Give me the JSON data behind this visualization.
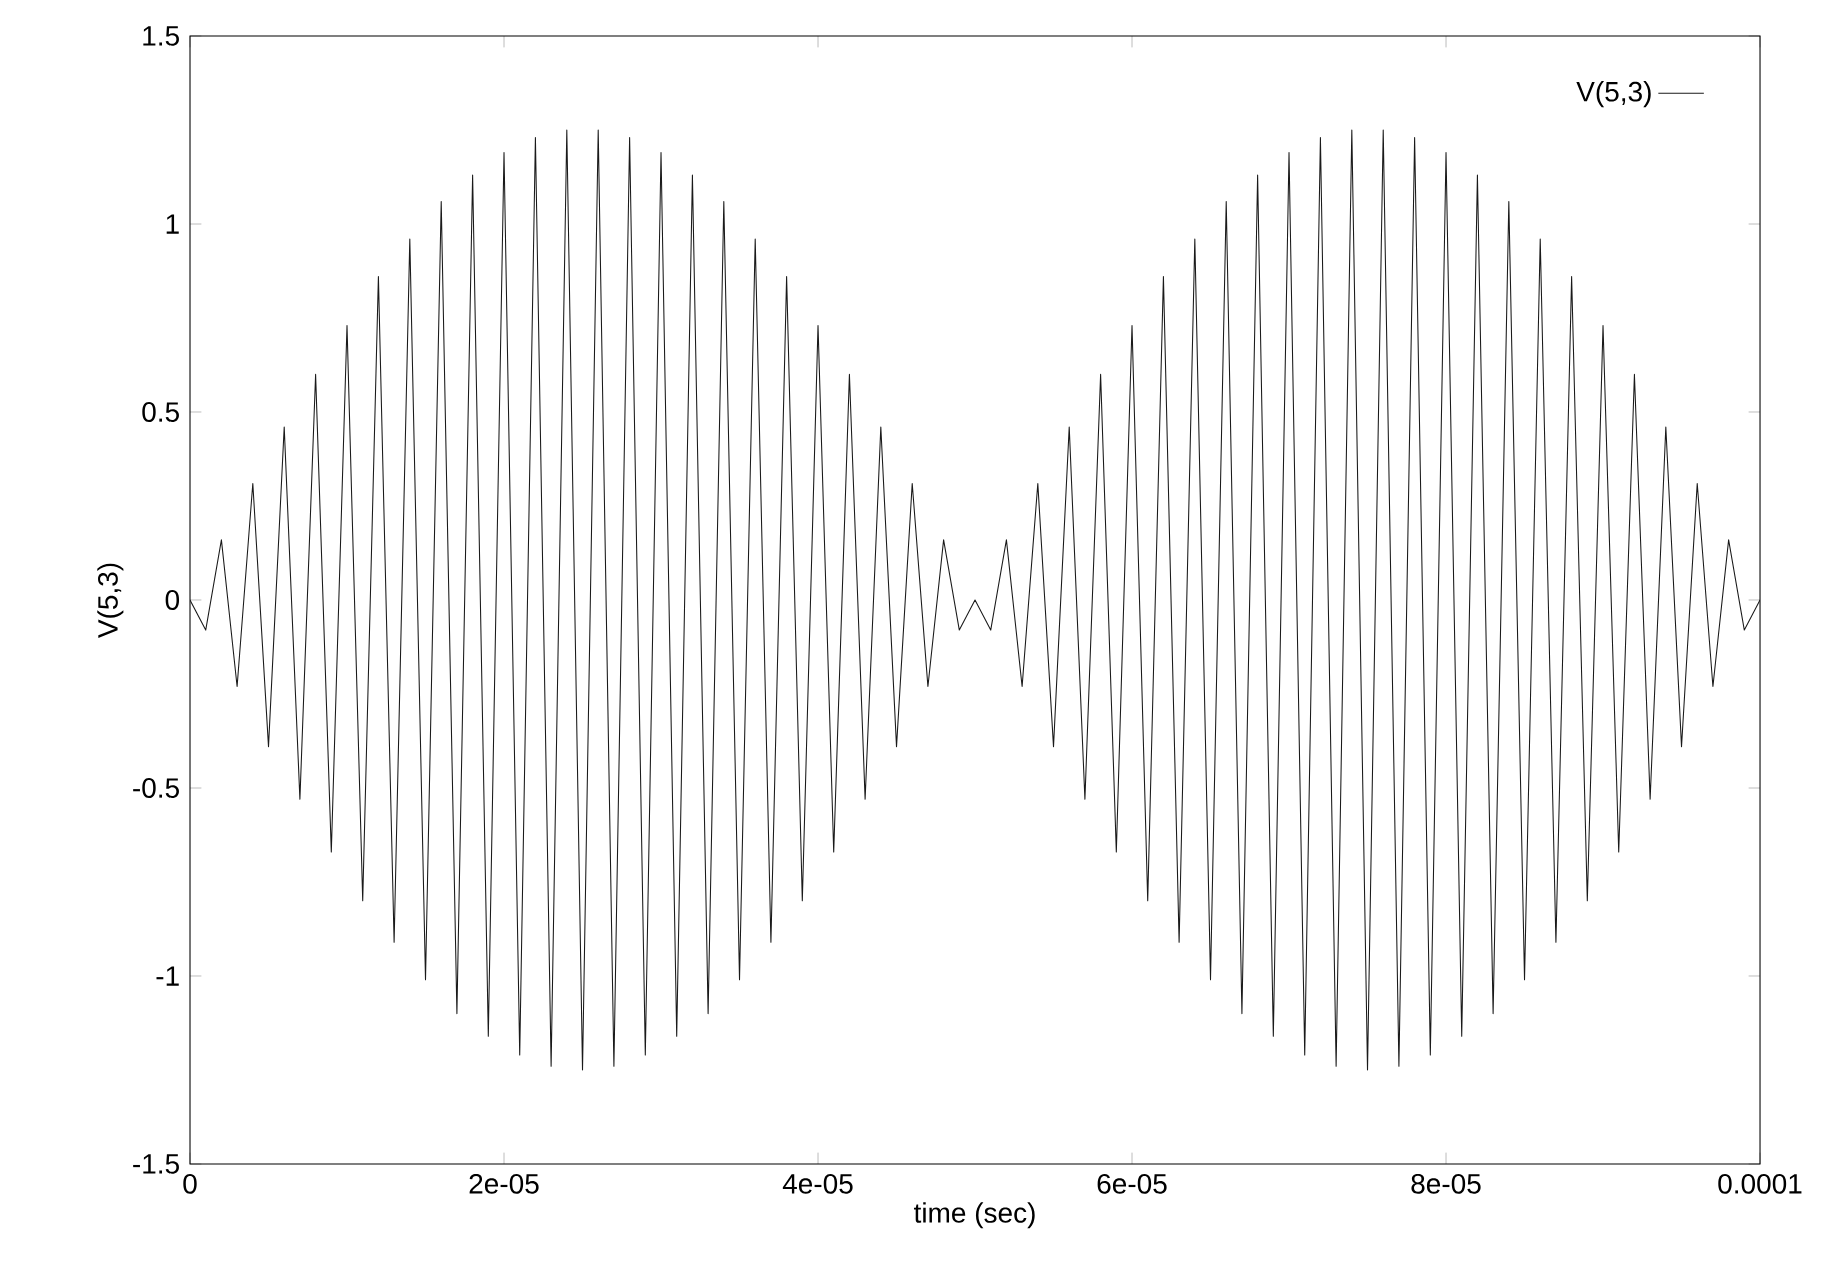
{
  "chart_data": {
    "type": "line",
    "xlabel": "time (sec)",
    "ylabel": "V(5,3)",
    "xlim": [
      0,
      0.0001
    ],
    "xticks": [
      0,
      {
        "value": 2e-05,
        "label": "2e-05"
      },
      {
        "value": 4e-05,
        "label": "4e-05"
      },
      {
        "value": 6e-05,
        "label": "6e-05"
      },
      {
        "value": 8e-05,
        "label": "8e-05"
      },
      {
        "value": 0.0001,
        "label": "0.0001"
      }
    ],
    "ylim": [
      -1.5,
      1.5
    ],
    "yticks": [
      -1.5,
      -1,
      -0.5,
      0,
      0.5,
      1,
      1.5
    ],
    "legend": "top right",
    "grid": false,
    "marker": "none",
    "line_style": "solid",
    "x": [
      0,
      1e-06,
      2e-06,
      3e-06,
      4e-06,
      5e-06,
      6e-06,
      7e-06,
      8e-06,
      9e-06,
      1e-05,
      1.1e-05,
      1.2e-05,
      1.3e-05,
      1.4e-05,
      1.5e-05,
      1.6e-05,
      1.7e-05,
      1.8e-05,
      1.9e-05,
      2e-05,
      2.1e-05,
      2.2e-05,
      2.3e-05,
      2.4e-05,
      2.5e-05,
      2.6e-05,
      2.7e-05,
      2.8e-05,
      2.9e-05,
      3e-05,
      3.1e-05,
      3.2e-05,
      3.3e-05,
      3.4e-05,
      3.5e-05,
      3.6e-05,
      3.7e-05,
      3.8e-05,
      3.9e-05,
      4e-05,
      4.1e-05,
      4.2e-05,
      4.3e-05,
      4.4e-05,
      4.5e-05,
      4.6e-05,
      4.7e-05,
      4.8e-05,
      4.9e-05,
      5e-05,
      5.1e-05,
      5.2e-05,
      5.3e-05,
      5.4e-05,
      5.5e-05,
      5.6e-05,
      5.7e-05,
      5.8e-05,
      5.9e-05,
      6e-05,
      6.1e-05,
      6.2e-05,
      6.3e-05,
      6.4e-05,
      6.5e-05,
      6.6e-05,
      6.7e-05,
      6.8e-05,
      6.9e-05,
      7e-05,
      7.1e-05,
      7.2e-05,
      7.3e-05,
      7.4e-05,
      7.5e-05,
      7.6e-05,
      7.7e-05,
      7.8e-05,
      7.9e-05,
      8e-05,
      8.1e-05,
      8.2e-05,
      8.3e-05,
      8.4e-05,
      8.5e-05,
      8.6e-05,
      8.7e-05,
      8.8e-05,
      8.9e-05,
      9e-05,
      9.1e-05,
      9.2e-05,
      9.3e-05,
      9.4e-05,
      9.5e-05,
      9.6e-05,
      9.7e-05,
      9.8e-05,
      9.9e-05,
      0.0001
    ],
    "series": [
      {
        "name": "V(5,3)",
        "color": "#1a1a1a",
        "values": [
          0,
          -0.08,
          0.16,
          -0.23,
          0.31,
          -0.39,
          0.46,
          -0.53,
          0.6,
          -0.67,
          0.73,
          -0.8,
          0.86,
          -0.91,
          0.96,
          -1.01,
          1.06,
          -1.1,
          1.13,
          -1.16,
          1.19,
          -1.21,
          1.23,
          -1.24,
          1.25,
          -1.25,
          1.25,
          -1.24,
          1.23,
          -1.21,
          1.19,
          -1.16,
          1.13,
          -1.1,
          1.06,
          -1.01,
          0.96,
          -0.91,
          0.86,
          -0.8,
          0.73,
          -0.67,
          0.6,
          -0.53,
          0.46,
          -0.39,
          0.31,
          -0.23,
          0.16,
          -0.08,
          0,
          -0.08,
          0.16,
          -0.23,
          0.31,
          -0.39,
          0.46,
          -0.53,
          0.6,
          -0.67,
          0.73,
          -0.8,
          0.86,
          -0.91,
          0.96,
          -1.01,
          1.06,
          -1.1,
          1.13,
          -1.16,
          1.19,
          -1.21,
          1.23,
          -1.24,
          1.25,
          -1.25,
          1.25,
          -1.24,
          1.23,
          -1.21,
          1.19,
          -1.16,
          1.13,
          -1.1,
          1.06,
          -1.01,
          0.96,
          -0.91,
          0.86,
          -0.8,
          0.73,
          -0.67,
          0.6,
          -0.53,
          0.46,
          -0.39,
          0.31,
          -0.23,
          0.16,
          -0.08,
          0
        ]
      }
    ]
  }
}
